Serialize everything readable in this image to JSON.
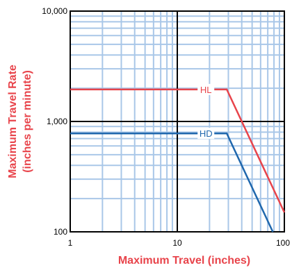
{
  "chart_data": {
    "type": "line",
    "title": "",
    "xlabel": "Maximum Travel (inches)",
    "ylabel_line1": "Maximum Travel Rate",
    "ylabel_line2": "(inches per minute)",
    "x_scale": "log",
    "y_scale": "log",
    "xlim": [
      1,
      100
    ],
    "ylim": [
      100,
      10000
    ],
    "x_tick_labels": [
      "1",
      "10",
      "100"
    ],
    "y_tick_labels": [
      "100",
      "1,000",
      "10,000"
    ],
    "grid": true,
    "grid_color": "#a9c7e8",
    "major_grid_color": "#000000",
    "label_color": "#e8444b",
    "series": [
      {
        "name": "HL",
        "color": "#e8444b",
        "points": [
          [
            1,
            1950
          ],
          [
            29,
            1950
          ],
          [
            100,
            150
          ]
        ]
      },
      {
        "name": "HD",
        "color": "#1f67ad",
        "points": [
          [
            1,
            780
          ],
          [
            29,
            780
          ],
          [
            78,
            100
          ]
        ]
      }
    ]
  }
}
